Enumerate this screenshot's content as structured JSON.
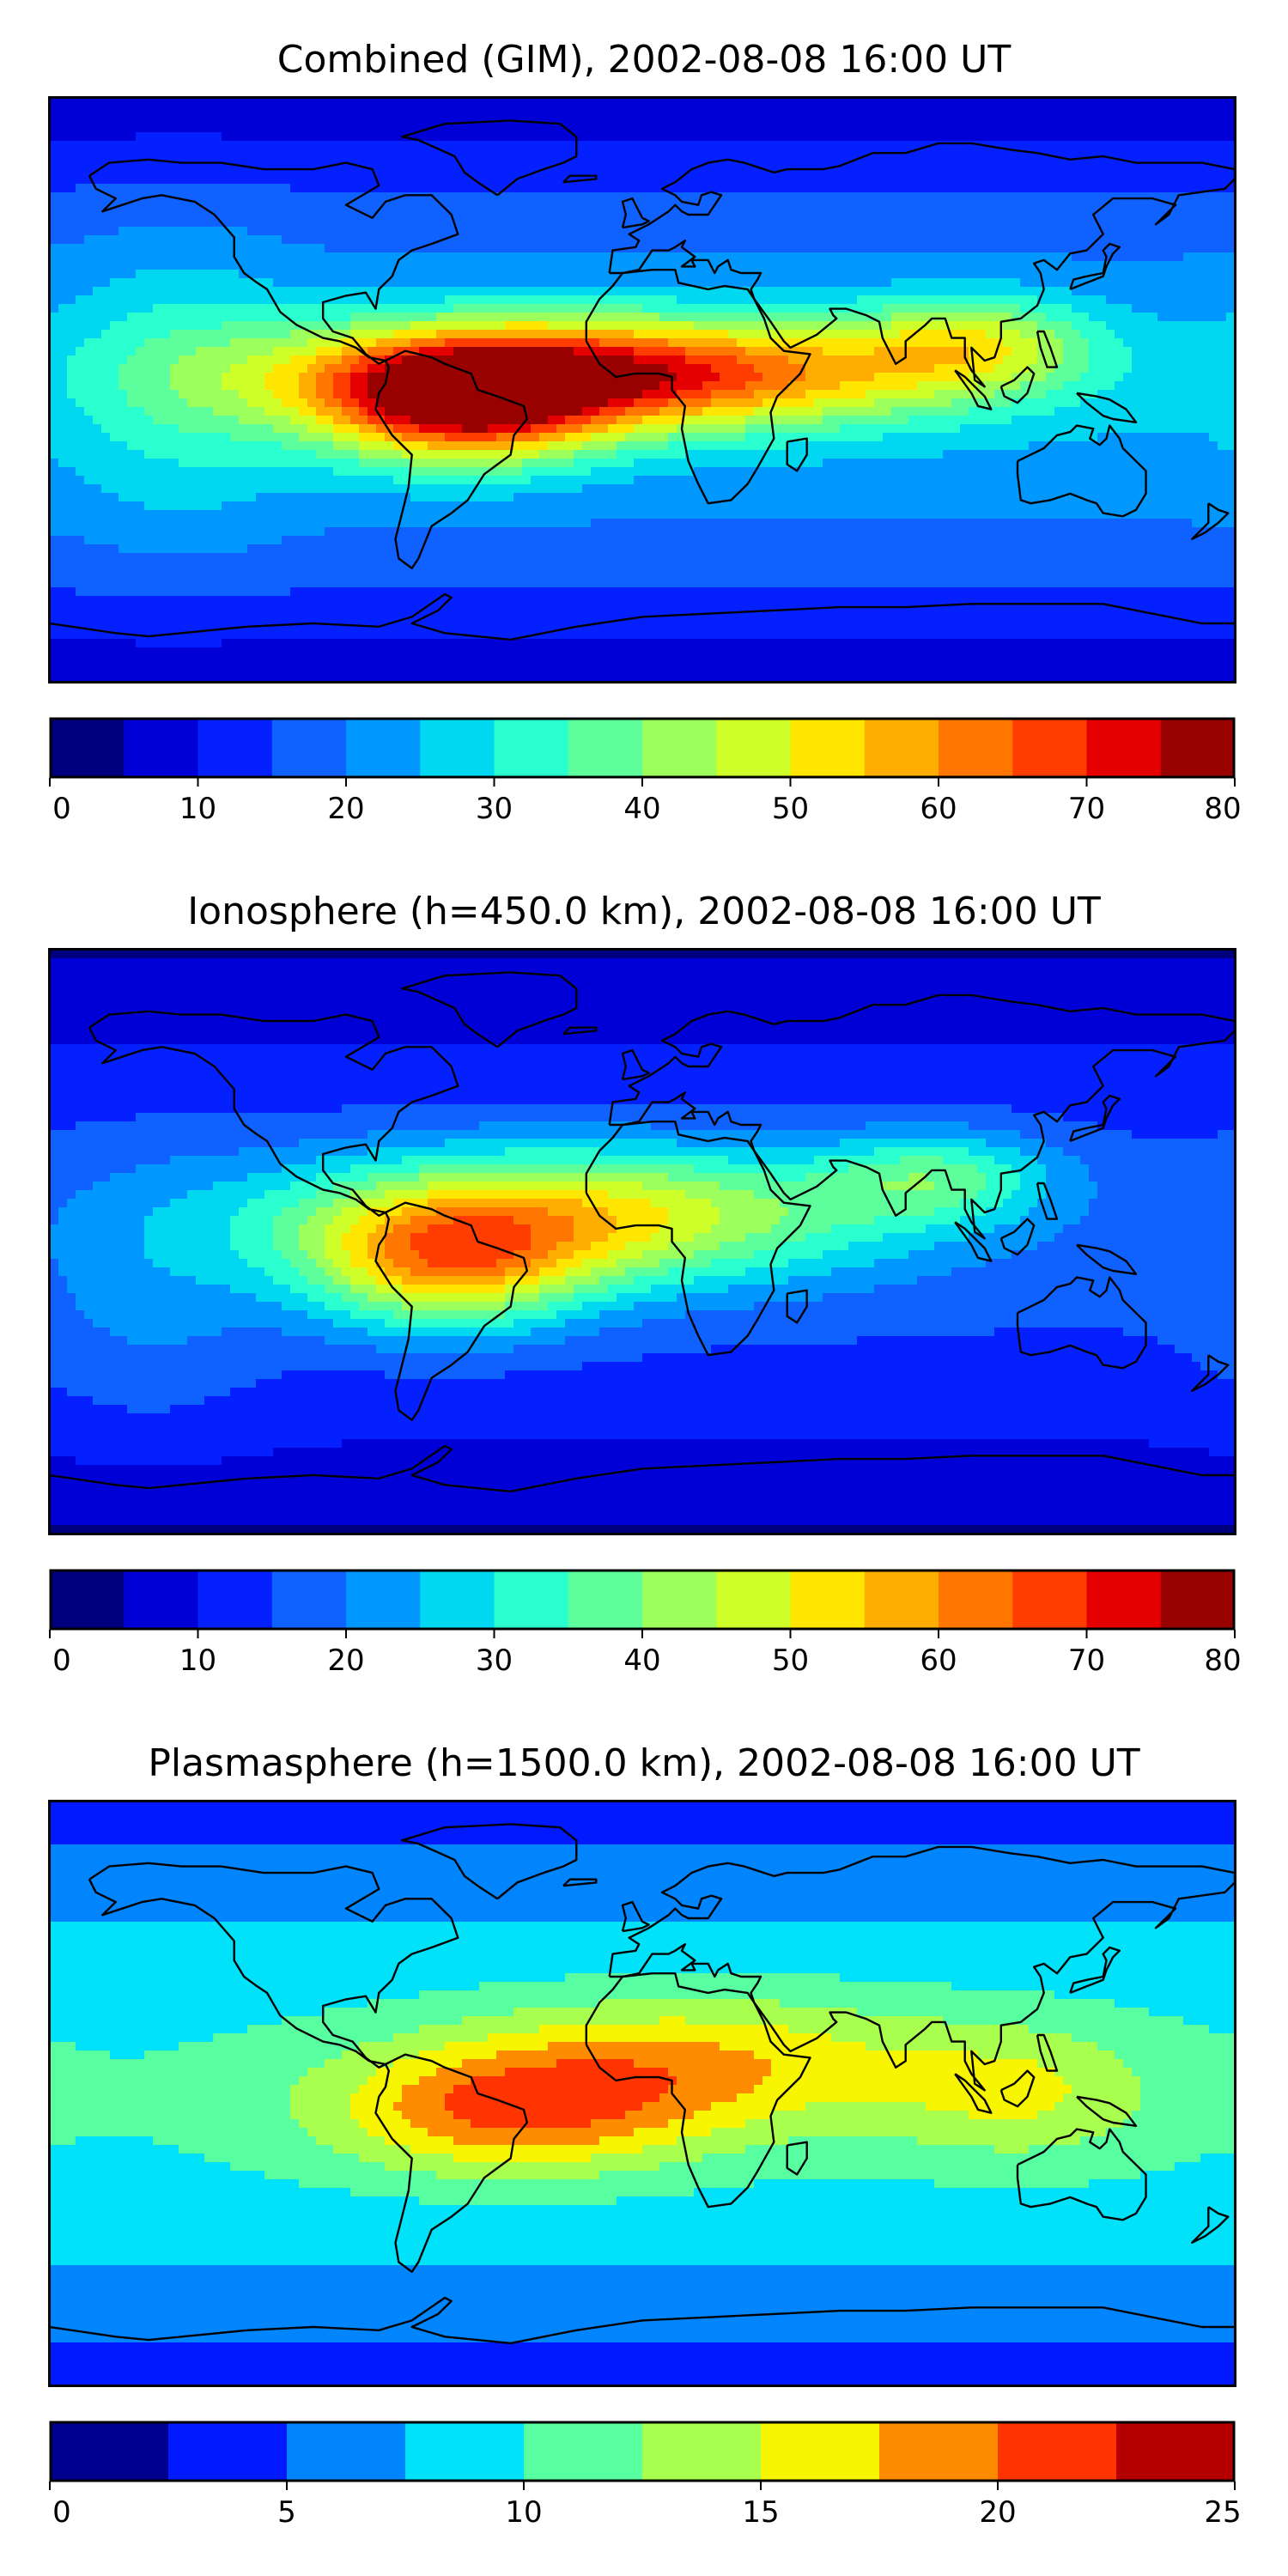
{
  "chart_data": [
    {
      "type": "heatmap",
      "title": "Combined (GIM), 2002-08-08 16:00 UT",
      "colorbar": {
        "ticks": [
          "0",
          "10",
          "20",
          "30",
          "40",
          "50",
          "60",
          "70",
          "80"
        ],
        "bounds": [
          0,
          5,
          10,
          15,
          20,
          25,
          30,
          35,
          40,
          45,
          50,
          55,
          60,
          65,
          70,
          75,
          80
        ],
        "colors": [
          "#00007f",
          "#0000d6",
          "#0520ff",
          "#0f62ff",
          "#0098ff",
          "#00d8f2",
          "#2affd0",
          "#5cff9b",
          "#9cff5b",
          "#cfff28",
          "#ffe600",
          "#ffad00",
          "#ff7600",
          "#ff3d00",
          "#e40000",
          "#990000"
        ]
      },
      "features": [
        {
          "lon": -10,
          "lat": 5,
          "value": 72,
          "sx": 70,
          "sy": 12
        },
        {
          "lon": -55,
          "lat": -5,
          "value": 64,
          "sx": 30,
          "sy": 13
        },
        {
          "lon": -140,
          "lat": 0,
          "value": 30,
          "sx": 25,
          "sy": 35
        },
        {
          "lon": 100,
          "lat": 15,
          "value": 42,
          "sx": 25,
          "sy": 10
        }
      ],
      "base_value": 22
    },
    {
      "type": "heatmap",
      "title": "Ionosphere  (h=450.0 km), 2002-08-08 16:00 UT",
      "colorbar": {
        "ticks": [
          "0",
          "10",
          "20",
          "30",
          "40",
          "50",
          "60",
          "70",
          "80"
        ],
        "bounds": [
          0,
          5,
          10,
          15,
          20,
          25,
          30,
          35,
          40,
          45,
          50,
          55,
          60,
          65,
          70,
          75,
          80
        ],
        "colors": [
          "#00007f",
          "#0000d6",
          "#0520ff",
          "#0f62ff",
          "#0098ff",
          "#00d8f2",
          "#2affd0",
          "#5cff9b",
          "#9cff5b",
          "#cfff28",
          "#ffe600",
          "#ffad00",
          "#ff7600",
          "#ff3d00",
          "#e40000",
          "#990000"
        ]
      },
      "features": [
        {
          "lon": -20,
          "lat": 8,
          "value": 50,
          "sx": 65,
          "sy": 15
        },
        {
          "lon": -60,
          "lat": -8,
          "value": 46,
          "sx": 30,
          "sy": 14
        },
        {
          "lon": 90,
          "lat": 20,
          "value": 32,
          "sx": 25,
          "sy": 10
        },
        {
          "lon": -150,
          "lat": -20,
          "value": 20,
          "sx": 25,
          "sy": 30
        }
      ],
      "base_value": 14
    },
    {
      "type": "heatmap",
      "title": "Plasmasphere (h=1500.0 km), 2002-08-08 16:00 UT",
      "colorbar": {
        "ticks": [
          "0",
          "5",
          "10",
          "15",
          "20",
          "25"
        ],
        "bounds": [
          0,
          2.5,
          5,
          7.5,
          10,
          12.5,
          15,
          17.5,
          20,
          22.5,
          25
        ],
        "colors": [
          "#00008f",
          "#0019ff",
          "#0085ff",
          "#00e2f9",
          "#58ffa1",
          "#a8ff4e",
          "#f8f500",
          "#ff8c00",
          "#ff3400",
          "#b40000"
        ]
      },
      "features": [
        {
          "lon": -40,
          "lat": -5,
          "value": 17.8,
          "sx": 40,
          "sy": 14
        },
        {
          "lon": 20,
          "lat": 10,
          "value": 15,
          "sx": 50,
          "sy": 15
        },
        {
          "lon": 115,
          "lat": 0,
          "value": 13,
          "sx": 30,
          "sy": 15
        }
      ],
      "base_value": 8
    }
  ]
}
